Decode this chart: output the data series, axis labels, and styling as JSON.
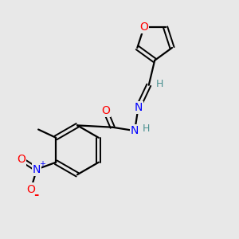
{
  "bg_color": "#e8e8e8",
  "bond_color": "#000000",
  "atom_colors": {
    "O": "#ff0000",
    "N": "#0000ff",
    "C": "#000000",
    "H": "#4a9090"
  },
  "figsize": [
    3.0,
    3.0
  ],
  "dpi": 100
}
